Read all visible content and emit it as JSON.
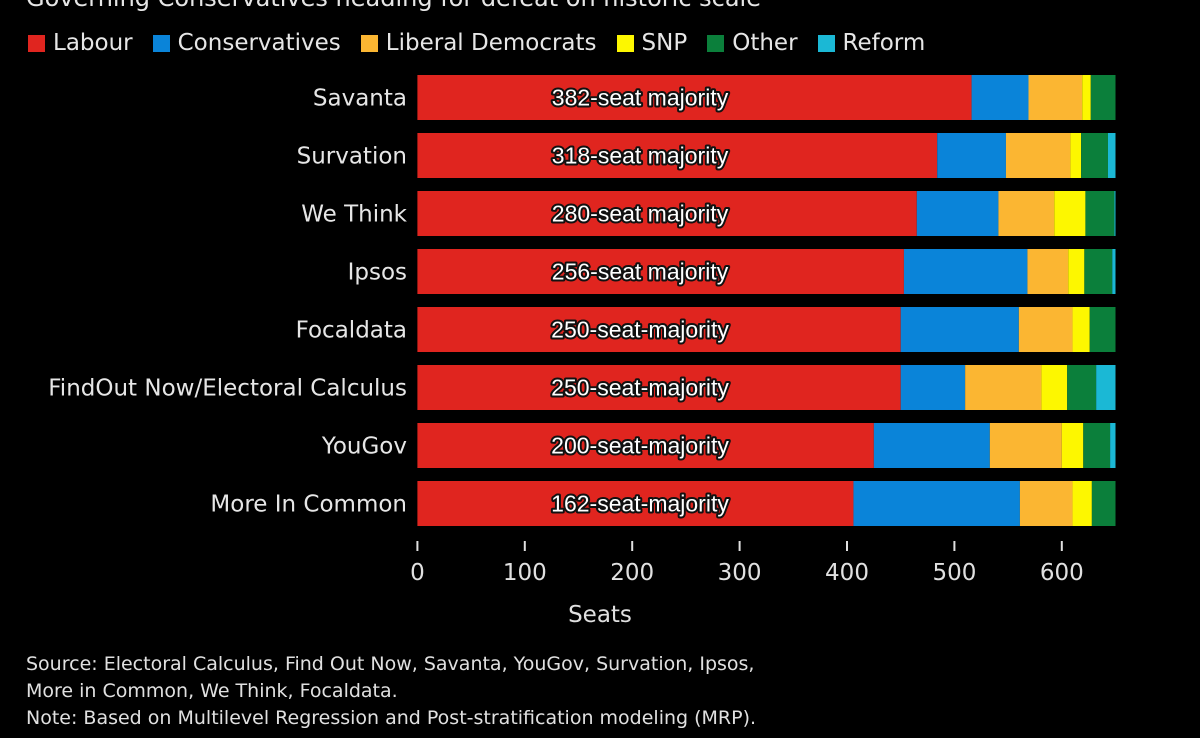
{
  "chart_data": {
    "type": "bar",
    "orientation": "horizontal",
    "stacked": true,
    "title": "Governing Conservatives heading for defeat on historic scale",
    "xlabel": "Seats",
    "ylabel": "",
    "xlim": [
      0,
      650
    ],
    "xticks": [
      0,
      100,
      200,
      300,
      400,
      500,
      600
    ],
    "grid": false,
    "legend_position": "top",
    "categories": [
      "Savanta",
      "Survation",
      "We Think",
      "Ipsos",
      "Focaldata",
      "FindOut Now/Electoral Calculus",
      "YouGov",
      "More In Common"
    ],
    "annotations": [
      "382-seat majority",
      "318-seat majority",
      "280-seat majority",
      "256-seat majority",
      "250-seat-majority",
      "250-seat-majority",
      "200-seat-majority",
      "162-seat-majority"
    ],
    "series": [
      {
        "name": "Labour",
        "color": "#e0251f",
        "values": [
          516,
          484,
          465,
          453,
          450,
          450,
          425,
          406
        ]
      },
      {
        "name": "Conservatives",
        "color": "#0a84d9",
        "values": [
          53,
          64,
          76,
          115,
          110,
          60,
          108,
          155
        ]
      },
      {
        "name": "Liberal Democrats",
        "color": "#fbb632",
        "values": [
          50,
          60,
          52,
          38,
          50,
          71,
          67,
          49
        ]
      },
      {
        "name": "SNP",
        "color": "#fdf700",
        "values": [
          8,
          10,
          29,
          15,
          16,
          24,
          20,
          18
        ]
      },
      {
        "name": "Other",
        "color": "#0b7f3b",
        "values": [
          23,
          25,
          27,
          26,
          24,
          27,
          25,
          22
        ]
      },
      {
        "name": "Reform",
        "color": "#1bb8d5",
        "values": [
          0,
          7,
          1,
          3,
          0,
          18,
          5,
          0
        ]
      }
    ]
  },
  "footer": {
    "source_line1": "Source: Electoral Calculus, Find Out Now, Savanta, YouGov, Survation, Ipsos,",
    "source_line2": "More in Common, We Think, Focaldata.",
    "note": "Note: Based on Multilevel Regression and Post-stratification modeling (MRP)."
  }
}
